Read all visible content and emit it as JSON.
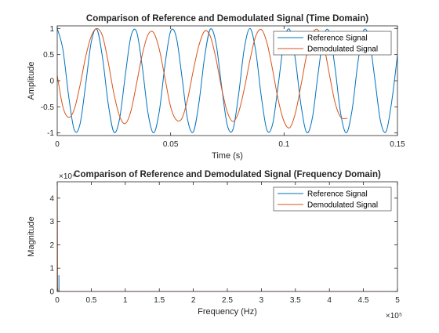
{
  "chart_data": [
    {
      "type": "line",
      "title": "Comparison of Reference and Demodulated Signal (Time Domain)",
      "xlabel": "Time (s)",
      "ylabel": "Amplitude",
      "xlim": [
        0,
        0.15
      ],
      "ylim": [
        -1.05,
        1.05
      ],
      "xticks": [
        0,
        0.05,
        0.1,
        0.15
      ],
      "xtick_labels": [
        "0",
        "0.05",
        "0.1",
        "0.15"
      ],
      "yticks": [
        -1,
        -0.5,
        0,
        0.5,
        1
      ],
      "ytick_labels": [
        "-1",
        "-0.5",
        "0",
        "0.5",
        "1"
      ],
      "grid": false,
      "legend": "top-right",
      "series": [
        {
          "name": "Reference Signal",
          "color": "#0072BD",
          "x": [
            0.0,
            0.0025,
            0.005,
            0.0075,
            0.01,
            0.0125,
            0.015,
            0.0175,
            0.02,
            0.0225,
            0.025,
            0.0275,
            0.03,
            0.0325,
            0.035,
            0.0375,
            0.04,
            0.0425,
            0.045,
            0.0475,
            0.05,
            0.0525,
            0.055,
            0.0575,
            0.06,
            0.0625,
            0.065,
            0.0675,
            0.07,
            0.0725,
            0.075,
            0.0775,
            0.08,
            0.0825,
            0.085,
            0.0875,
            0.09,
            0.0925,
            0.095,
            0.0975,
            0.1,
            0.1025,
            0.105,
            0.1075,
            0.11,
            0.1125,
            0.115,
            0.1175,
            0.12,
            0.1225,
            0.125,
            0.1275,
            0.13,
            0.1325,
            0.135,
            0.1375,
            0.14,
            0.1425,
            0.145,
            0.1475,
            0.15
          ],
          "y": [
            1.0,
            0.599,
            -0.282,
            -0.941,
            -0.84,
            -0.087,
            0.738,
            0.983,
            0.432,
            -0.447,
            -0.986,
            -0.728,
            0.101,
            0.847,
            0.936,
            0.267,
            -0.612,
            -0.999,
            -0.586,
            0.297,
            0.946,
            0.832,
            0.072,
            -0.748,
            -0.98,
            -0.418,
            0.461,
            0.988,
            0.719,
            -0.116,
            -0.854,
            -0.931,
            -0.252,
            0.624,
            0.999,
            0.574,
            -0.311,
            -0.95,
            -0.825,
            -0.058,
            0.757,
            0.977,
            0.403,
            -0.475,
            -0.991,
            -0.709,
            0.13,
            0.862,
            0.925,
            0.237,
            -0.636,
            -0.998,
            -0.561,
            0.326,
            0.954,
            0.817,
            0.043,
            -0.766,
            -0.974,
            -0.389,
            0.489
          ]
        },
        {
          "name": "Demodulated Signal",
          "color": "#D95319",
          "x": [
            0.0,
            0.0025,
            0.005,
            0.0075,
            0.01,
            0.0125,
            0.015,
            0.0175,
            0.02,
            0.0225,
            0.025,
            0.0275,
            0.03,
            0.0325,
            0.035,
            0.0375,
            0.04,
            0.0425,
            0.045,
            0.0475,
            0.05,
            0.0525,
            0.055,
            0.0575,
            0.06,
            0.0625,
            0.065,
            0.0675,
            0.07,
            0.0725,
            0.075,
            0.0775,
            0.08,
            0.0825,
            0.085,
            0.0875,
            0.09,
            0.0925,
            0.095,
            0.0975,
            0.1,
            0.1025,
            0.105,
            0.1075,
            0.11,
            0.1125,
            0.115,
            0.1175,
            0.12,
            0.1225,
            0.125,
            0.128
          ],
          "y": [
            0.1,
            -0.5,
            -0.7,
            -0.55,
            -0.1,
            0.45,
            0.85,
            1.0,
            0.85,
            0.35,
            -0.25,
            -0.68,
            -0.82,
            -0.58,
            -0.05,
            0.5,
            0.88,
            0.92,
            0.6,
            0.05,
            -0.5,
            -0.75,
            -0.72,
            -0.35,
            0.2,
            0.68,
            0.95,
            0.85,
            0.42,
            -0.15,
            -0.6,
            -0.78,
            -0.6,
            -0.15,
            0.4,
            0.85,
            0.98,
            0.72,
            0.2,
            -0.38,
            -0.78,
            -0.9,
            -0.62,
            -0.08,
            0.5,
            0.9,
            0.97,
            0.68,
            0.12,
            -0.42,
            -0.7,
            -0.72
          ]
        }
      ]
    },
    {
      "type": "line",
      "title": "Comparison of Reference and Demodulated Signal (Frequency Domain)",
      "xlabel": "Frequency (Hz)",
      "ylabel": "Magnitude",
      "xlim": [
        0,
        500000
      ],
      "ylim": [
        0,
        47000
      ],
      "xticks": [
        0,
        50000,
        100000,
        150000,
        200000,
        250000,
        300000,
        350000,
        400000,
        450000,
        500000
      ],
      "xtick_labels": [
        "0",
        "0.5",
        "1",
        "1.5",
        "2",
        "2.5",
        "3",
        "3.5",
        "4",
        "4.5",
        "5"
      ],
      "x_exponent": "×10⁵",
      "yticks": [
        0,
        10000,
        20000,
        30000,
        40000
      ],
      "ytick_labels": [
        "0",
        "1",
        "2",
        "3",
        "4"
      ],
      "y_exponent": "×10⁴",
      "grid": false,
      "legend": "top-right",
      "series": [
        {
          "name": "Reference Signal",
          "color": "#0072BD",
          "x": [
            0,
            2500,
            2500,
            2600,
            500000
          ],
          "y": [
            0,
            0,
            7000,
            0,
            0
          ]
        },
        {
          "name": "Demodulated Signal",
          "color": "#D95319",
          "x": [
            0,
            0,
            500,
            1200,
            500000
          ],
          "y": [
            0,
            47000,
            1500,
            0,
            0
          ]
        }
      ]
    }
  ]
}
